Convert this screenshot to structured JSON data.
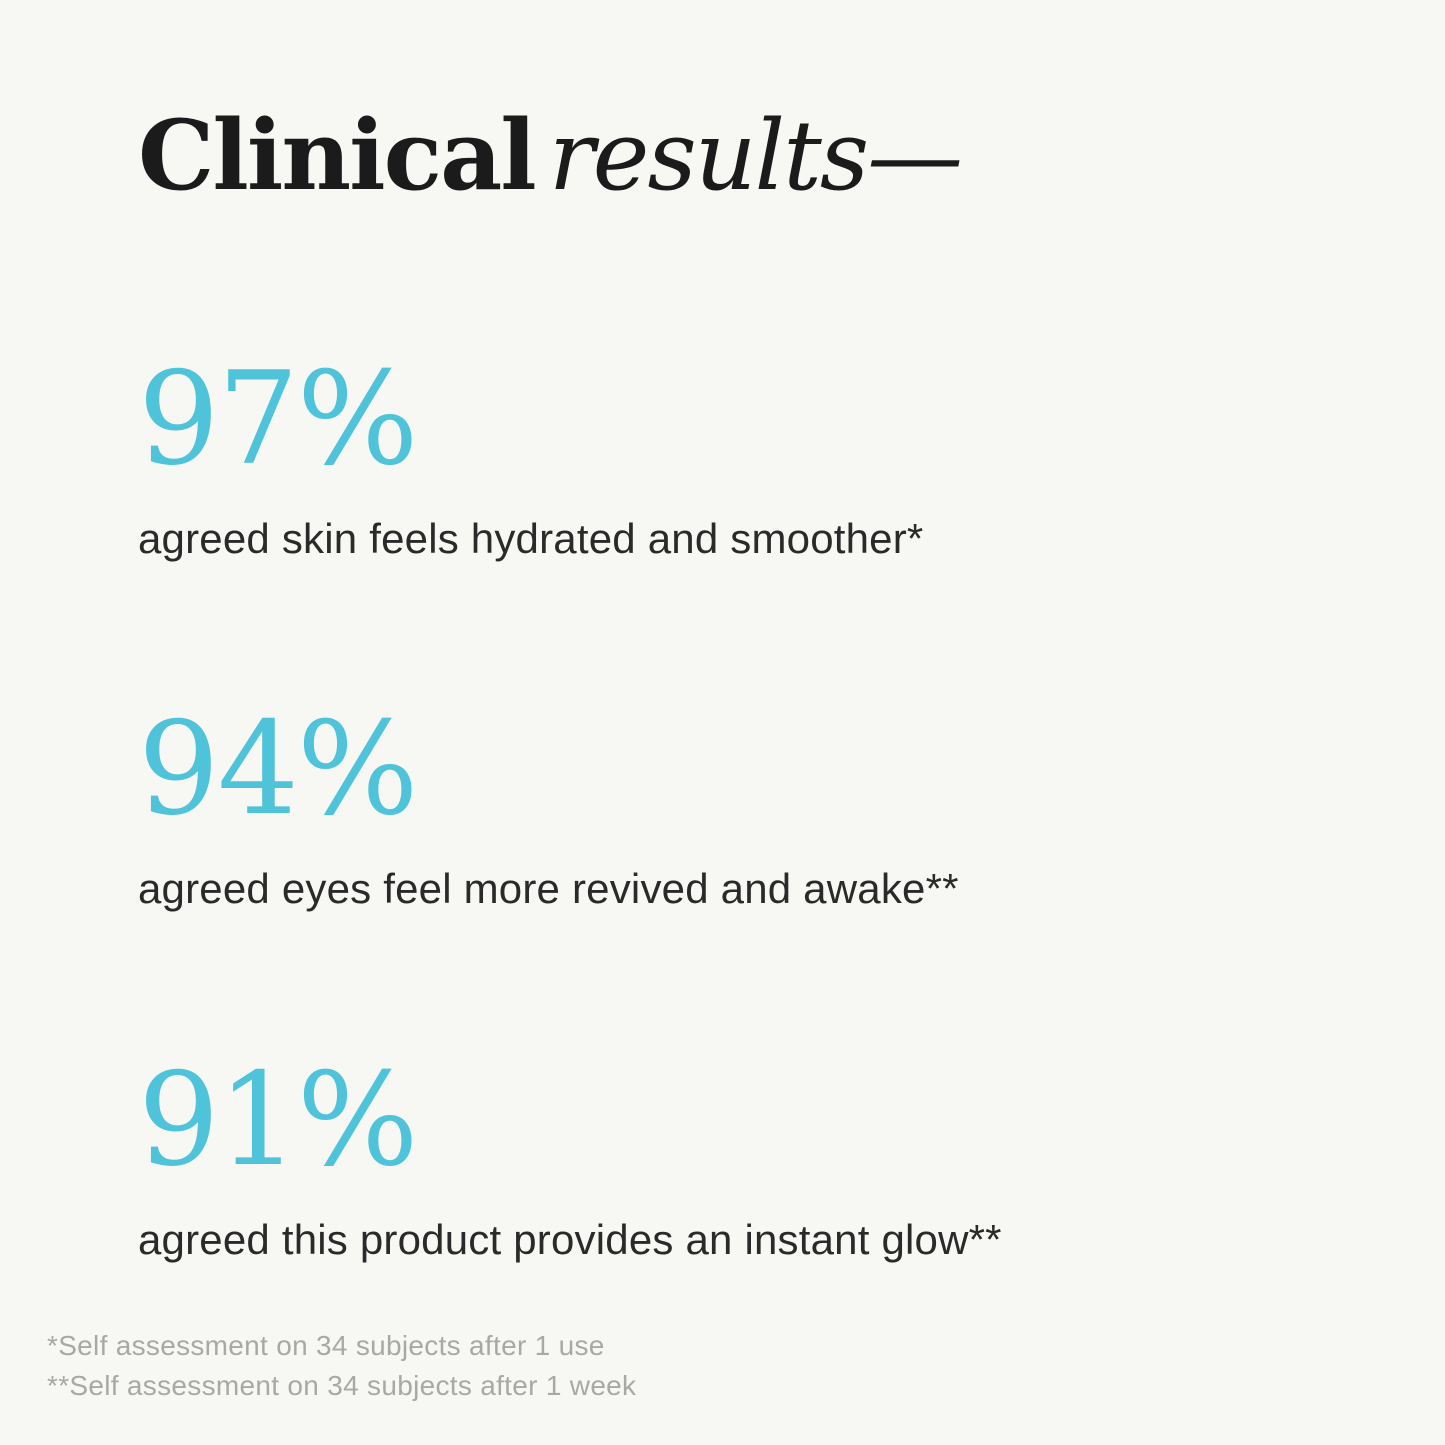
{
  "page": {
    "background_color": "#f7f7f4",
    "accent_color": "#4fc3d9",
    "title": {
      "regular": "Clinical",
      "italic": "results—"
    },
    "stats": [
      {
        "value": "97%",
        "description": "agreed skin feels hydrated and smoother*"
      },
      {
        "value": "94%",
        "description": "agreed eyes feel more revived and awake**"
      },
      {
        "value": "91%",
        "description": "agreed this product provides an instant glow**"
      }
    ],
    "footnotes": [
      "*Self assessment on 34 subjects after 1 use",
      "**Self assessment on 34 subjects after 1 week"
    ]
  }
}
